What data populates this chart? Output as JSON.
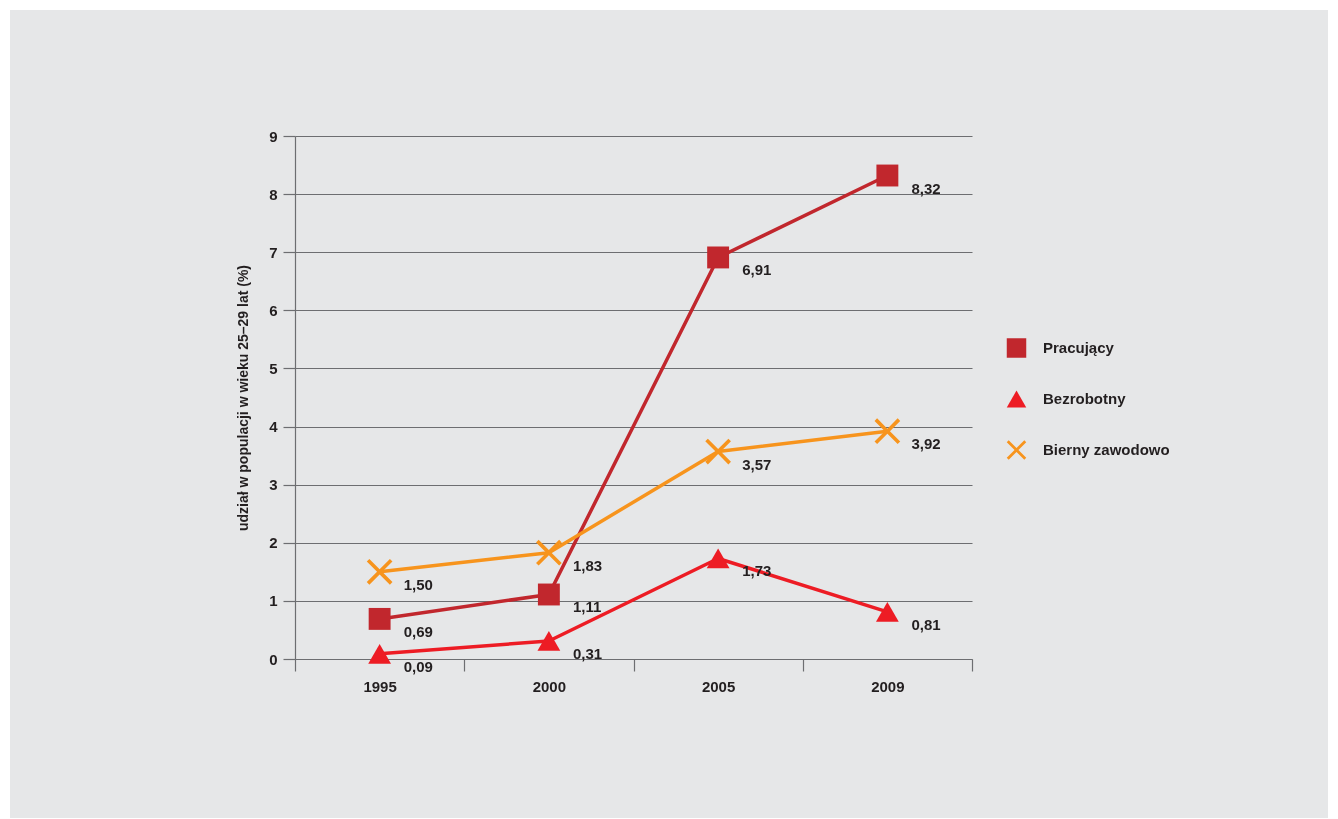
{
  "chart_data": {
    "type": "line",
    "ylabel": "udział w populacji w wieku 25–29 lat (%)",
    "categories": [
      "1995",
      "2000",
      "2005",
      "2009"
    ],
    "series": [
      {
        "name": "Pracujący",
        "color": "#c1272d",
        "marker": "square",
        "values": [
          0.69,
          1.11,
          6.91,
          8.32
        ],
        "value_labels": [
          "0,69",
          "1,11",
          "6,91",
          "8,32"
        ]
      },
      {
        "name": "Bezrobotny",
        "color": "#ed1c24",
        "marker": "triangle",
        "values": [
          0.09,
          0.31,
          1.73,
          0.81
        ],
        "value_labels": [
          "0,09",
          "0,31",
          "1,73",
          "0,81"
        ]
      },
      {
        "name": "Bierny zawodowo",
        "color": "#f7941d",
        "marker": "cross",
        "values": [
          1.5,
          1.83,
          3.57,
          3.92
        ],
        "value_labels": [
          "1,50",
          "1,83",
          "3,57",
          "3,92"
        ]
      }
    ],
    "ylim": [
      0,
      9
    ],
    "yticks": [
      0,
      1,
      2,
      3,
      4,
      5,
      6,
      7,
      8,
      9
    ],
    "grid": "y",
    "legend": "right",
    "line_style": "solid"
  }
}
